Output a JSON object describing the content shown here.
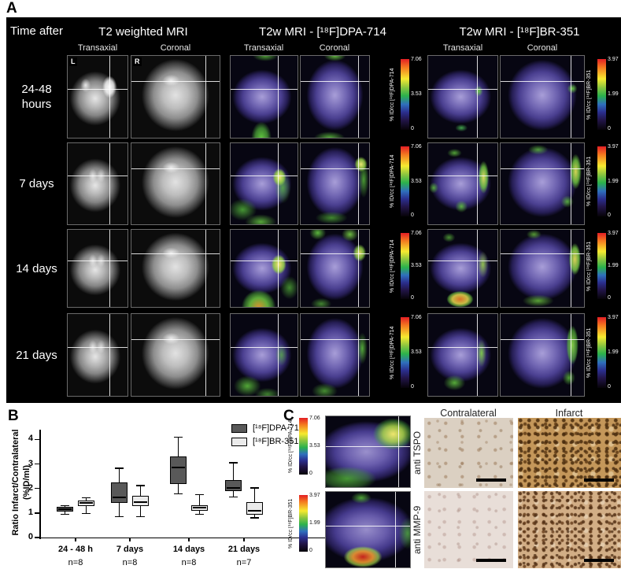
{
  "panel_a": {
    "label": "A",
    "time_after": "Time after",
    "orientation": {
      "left": "L",
      "right": "R"
    },
    "groups": [
      {
        "title": "T2 weighted MRI",
        "transaxial": "Transaxial",
        "coronal": "Coronal"
      },
      {
        "title": "T2w MRI - [¹⁸F]DPA-714",
        "transaxial": "Transaxial",
        "coronal": "Coronal"
      },
      {
        "title": "T2w MRI - [¹⁸F]BR-351",
        "transaxial": "Transaxial",
        "coronal": "Coronal"
      }
    ],
    "rows": [
      "24-48 hours",
      "7 days",
      "14 days",
      "21 days"
    ],
    "colorbars": {
      "dpa": {
        "label": "% ID/cc [¹⁸F]DPA-714",
        "max": "7.06",
        "mid": "3.53",
        "min": "0"
      },
      "br": {
        "label": "% ID/cc [¹⁸F]BR-351",
        "max": "3.97",
        "mid": "1.99",
        "min": "0"
      }
    }
  },
  "panel_b": {
    "label": "B",
    "ylabel_line1": "Ratio Infarct/Contralateral",
    "ylabel_line2": "(%ID/ml)",
    "legend": [
      {
        "label": "[¹⁸F]DPA-714",
        "color": "#595959"
      },
      {
        "label": "[¹⁸F]BR-351",
        "color": "#ebebeb"
      }
    ]
  },
  "chart_data": {
    "type": "box",
    "title": "",
    "xlabel": "",
    "ylabel": "Ratio Infarct/Contralateral (%ID/ml)",
    "categories": [
      "24 - 48 h",
      "7 days",
      "14 days",
      "21 days"
    ],
    "n_labels": [
      "n=8",
      "n=8",
      "n=8",
      "n=7"
    ],
    "ylim": [
      0,
      4.4
    ],
    "yticks": [
      0,
      1,
      2,
      3,
      4
    ],
    "grid": false,
    "legend_position": "top-right",
    "series": [
      {
        "name": "[¹⁸F]DPA-714",
        "color": "#595959",
        "boxes": [
          {
            "low": 0.95,
            "q1": 1.05,
            "median": 1.15,
            "q3": 1.25,
            "high": 1.3
          },
          {
            "low": 0.85,
            "q1": 1.4,
            "median": 1.65,
            "q3": 2.25,
            "high": 2.82
          },
          {
            "low": 1.78,
            "q1": 2.2,
            "median": 2.85,
            "q3": 3.3,
            "high": 4.1
          },
          {
            "low": 1.65,
            "q1": 1.9,
            "median": 2.02,
            "q3": 2.35,
            "high": 3.05
          }
        ]
      },
      {
        "name": "[¹⁸F]BR-351",
        "color": "#ebebeb",
        "boxes": [
          {
            "low": 0.98,
            "q1": 1.3,
            "median": 1.42,
            "q3": 1.52,
            "high": 1.62
          },
          {
            "low": 0.85,
            "q1": 1.28,
            "median": 1.45,
            "q3": 1.7,
            "high": 2.12
          },
          {
            "low": 0.95,
            "q1": 1.1,
            "median": 1.22,
            "q3": 1.32,
            "high": 1.75
          },
          {
            "low": 0.8,
            "q1": 0.92,
            "median": 1.1,
            "q3": 1.45,
            "high": 2.02
          }
        ]
      }
    ]
  },
  "panel_c": {
    "label": "C",
    "col_headers": [
      "Contralateral",
      "Infarct"
    ],
    "row_labels": [
      "anti TSPO",
      "anti MMP-9"
    ],
    "colorbars": {
      "dpa": {
        "label": "% ID/cc [¹⁸F]DPA-714",
        "max": "7.06",
        "mid": "3.53",
        "min": "0"
      },
      "br": {
        "label": "% ID/cc [¹⁸F]BR-351",
        "max": "3.97",
        "mid": "1.99",
        "min": "0"
      }
    }
  }
}
